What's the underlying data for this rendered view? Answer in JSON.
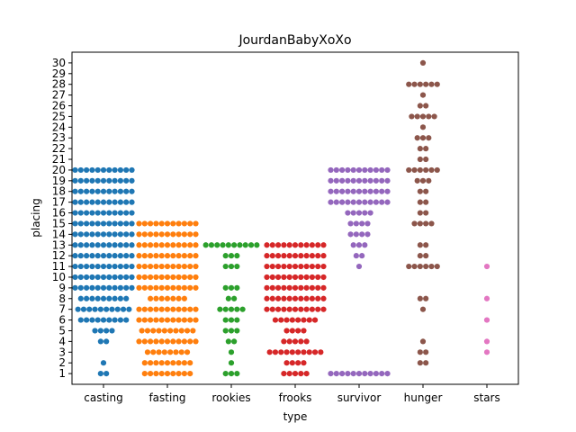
{
  "chart_data": {
    "type": "scatter",
    "subtype": "swarm",
    "title": "JourdanBabyXoXo",
    "xlabel": "type",
    "ylabel": "placing",
    "categories": [
      "casting",
      "fasting",
      "rookies",
      "frooks",
      "survivor",
      "hunger",
      "stars"
    ],
    "y_ticks": [
      1,
      2,
      3,
      4,
      5,
      6,
      7,
      8,
      9,
      10,
      11,
      12,
      13,
      14,
      15,
      16,
      17,
      18,
      19,
      20,
      21,
      22,
      23,
      24,
      25,
      26,
      27,
      28,
      29,
      30
    ],
    "ylim": [
      0,
      31
    ],
    "grid": false,
    "legend": "none",
    "series": [
      {
        "category": "casting",
        "color": "#1f77b4",
        "counts": [
          {
            "y": 1,
            "n": 2
          },
          {
            "y": 2,
            "n": 1
          },
          {
            "y": 3,
            "n": 0
          },
          {
            "y": 4,
            "n": 2
          },
          {
            "y": 5,
            "n": 4
          },
          {
            "y": 6,
            "n": 9
          },
          {
            "y": 7,
            "n": 10
          },
          {
            "y": 8,
            "n": 9
          },
          {
            "y": 9,
            "n": 11
          },
          {
            "y": 10,
            "n": 11
          },
          {
            "y": 11,
            "n": 11
          },
          {
            "y": 12,
            "n": 11
          },
          {
            "y": 13,
            "n": 11
          },
          {
            "y": 14,
            "n": 11
          },
          {
            "y": 15,
            "n": 11
          },
          {
            "y": 16,
            "n": 11
          },
          {
            "y": 17,
            "n": 11
          },
          {
            "y": 18,
            "n": 11
          },
          {
            "y": 19,
            "n": 11
          },
          {
            "y": 20,
            "n": 11
          }
        ]
      },
      {
        "category": "fasting",
        "color": "#ff7f0e",
        "counts": [
          {
            "y": 1,
            "n": 9
          },
          {
            "y": 2,
            "n": 9
          },
          {
            "y": 3,
            "n": 8
          },
          {
            "y": 4,
            "n": 11
          },
          {
            "y": 5,
            "n": 10
          },
          {
            "y": 6,
            "n": 11
          },
          {
            "y": 7,
            "n": 11
          },
          {
            "y": 8,
            "n": 7
          },
          {
            "y": 9,
            "n": 11
          },
          {
            "y": 10,
            "n": 11
          },
          {
            "y": 11,
            "n": 11
          },
          {
            "y": 12,
            "n": 11
          },
          {
            "y": 13,
            "n": 11
          },
          {
            "y": 14,
            "n": 11
          },
          {
            "y": 15,
            "n": 11
          }
        ]
      },
      {
        "category": "rookies",
        "color": "#2ca02c",
        "counts": [
          {
            "y": 1,
            "n": 3
          },
          {
            "y": 2,
            "n": 1
          },
          {
            "y": 3,
            "n": 1
          },
          {
            "y": 4,
            "n": 2
          },
          {
            "y": 5,
            "n": 3
          },
          {
            "y": 6,
            "n": 3
          },
          {
            "y": 7,
            "n": 5
          },
          {
            "y": 8,
            "n": 2
          },
          {
            "y": 9,
            "n": 3
          },
          {
            "y": 10,
            "n": 0
          },
          {
            "y": 11,
            "n": 3
          },
          {
            "y": 12,
            "n": 3
          },
          {
            "y": 13,
            "n": 10
          }
        ]
      },
      {
        "category": "frooks",
        "color": "#d62728",
        "counts": [
          {
            "y": 1,
            "n": 5
          },
          {
            "y": 2,
            "n": 4
          },
          {
            "y": 3,
            "n": 10
          },
          {
            "y": 4,
            "n": 5
          },
          {
            "y": 5,
            "n": 4
          },
          {
            "y": 6,
            "n": 8
          },
          {
            "y": 7,
            "n": 11
          },
          {
            "y": 8,
            "n": 11
          },
          {
            "y": 9,
            "n": 11
          },
          {
            "y": 10,
            "n": 11
          },
          {
            "y": 11,
            "n": 11
          },
          {
            "y": 12,
            "n": 11
          },
          {
            "y": 13,
            "n": 11
          }
        ]
      },
      {
        "category": "survivor",
        "color": "#9467bd",
        "counts": [
          {
            "y": 1,
            "n": 11
          },
          {
            "y": 11,
            "n": 1
          },
          {
            "y": 12,
            "n": 2
          },
          {
            "y": 13,
            "n": 3
          },
          {
            "y": 14,
            "n": 4
          },
          {
            "y": 15,
            "n": 4
          },
          {
            "y": 16,
            "n": 5
          },
          {
            "y": 17,
            "n": 11
          },
          {
            "y": 18,
            "n": 11
          },
          {
            "y": 19,
            "n": 11
          },
          {
            "y": 20,
            "n": 11
          }
        ]
      },
      {
        "category": "hunger",
        "color": "#8c564b",
        "counts": [
          {
            "y": 2,
            "n": 2
          },
          {
            "y": 3,
            "n": 2
          },
          {
            "y": 4,
            "n": 1
          },
          {
            "y": 7,
            "n": 1
          },
          {
            "y": 8,
            "n": 2
          },
          {
            "y": 11,
            "n": 6
          },
          {
            "y": 12,
            "n": 2
          },
          {
            "y": 13,
            "n": 2
          },
          {
            "y": 15,
            "n": 4
          },
          {
            "y": 16,
            "n": 2
          },
          {
            "y": 17,
            "n": 2
          },
          {
            "y": 18,
            "n": 2
          },
          {
            "y": 19,
            "n": 3
          },
          {
            "y": 20,
            "n": 6
          },
          {
            "y": 21,
            "n": 2
          },
          {
            "y": 22,
            "n": 2
          },
          {
            "y": 23,
            "n": 3
          },
          {
            "y": 24,
            "n": 1
          },
          {
            "y": 25,
            "n": 5
          },
          {
            "y": 26,
            "n": 2
          },
          {
            "y": 27,
            "n": 1
          },
          {
            "y": 28,
            "n": 6
          },
          {
            "y": 30,
            "n": 1
          }
        ]
      },
      {
        "category": "stars",
        "color": "#e377c2",
        "counts": [
          {
            "y": 3,
            "n": 1
          },
          {
            "y": 4,
            "n": 1
          },
          {
            "y": 6,
            "n": 1
          },
          {
            "y": 8,
            "n": 1
          },
          {
            "y": 11,
            "n": 1
          }
        ]
      }
    ]
  }
}
